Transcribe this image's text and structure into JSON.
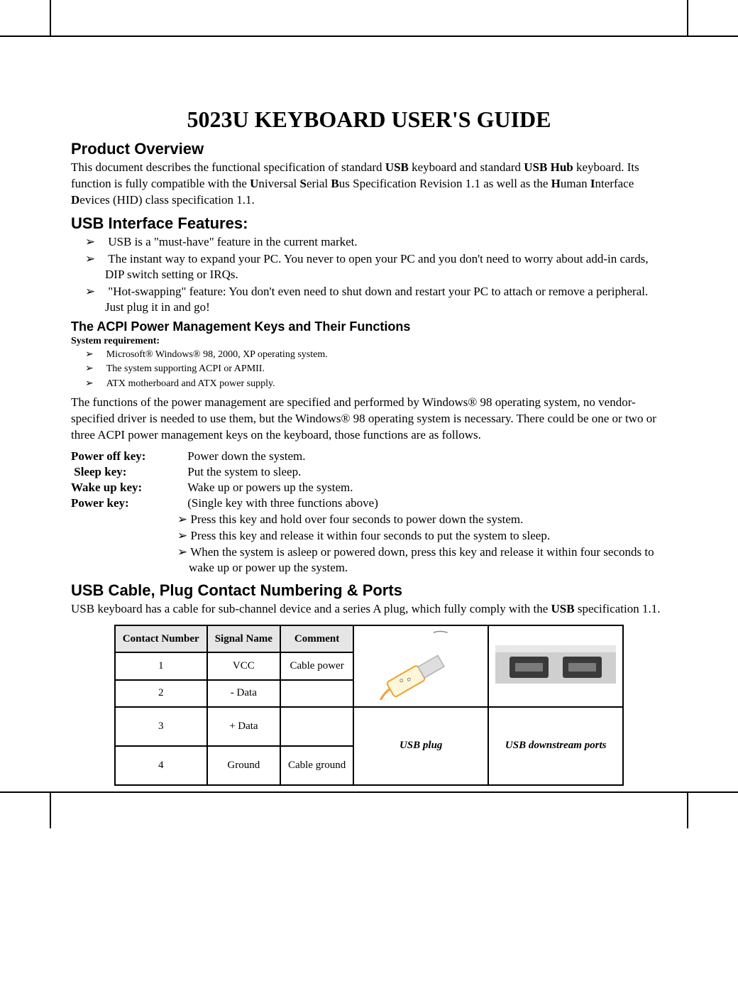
{
  "title": "5023U KEYBOARD USER'S GUIDE",
  "typography": {
    "title_font": "Comic Sans MS",
    "title_fontsize": 32,
    "section_font": "Arial",
    "section_fontsize": 22,
    "subsection_fontsize": 18,
    "body_font": "Times New Roman",
    "body_fontsize": 17,
    "small_fontsize": 14
  },
  "colors": {
    "text": "#000000",
    "background": "#ffffff",
    "table_header_bg": "#e6e6e6",
    "table_border": "#000000",
    "usb_plug_body": "#fdf6d8",
    "usb_plug_metal": "#dedede",
    "usb_plug_outline": "#f0a030",
    "usb_ports_bg": "#cfcfcf",
    "usb_port_dark": "#3a3a3a",
    "usb_port_slot": "#7a7a7a"
  },
  "overview": {
    "heading": "Product Overview",
    "text_html": "This document describes the functional specification of standard <b>USB</b> keyboard and standard <b>USB Hub</b> keyboard. Its function is fully compatible with the <b>U</b>niversal <b>S</b>erial <b>B</b>us Specification Revision 1.1 as well as the <b>H</b>uman <b>I</b>nterface <b>D</b>evices (HID) class specification 1.1."
  },
  "interface": {
    "heading": "USB Interface Features:",
    "bullets": [
      "USB is a \"must-have\" feature in the current market.",
      "The instant way to expand your PC. You never to open your PC and you don't need to worry about add-in cards, DIP switch setting or IRQs.",
      "\"Hot-swapping\" feature: You don't even need to shut down and restart your PC to attach or remove a peripheral. Just plug it in and go!"
    ]
  },
  "acpi": {
    "heading": "The ACPI Power Management Keys and Their Functions",
    "sysreq_label": "System requirement:",
    "sysreq_bullets": [
      "Microsoft® Windows® 98, 2000, XP operating system.",
      "The system supporting ACPI or APMII.",
      "ATX motherboard and ATX power supply."
    ],
    "para": "The functions of the power management are specified and performed by Windows® 98 operating system, no vendor-specified driver is needed to use them, but the Windows® 98 operating system is necessary. There could be one or two or three ACPI power management keys on the keyboard, those functions are as follows.",
    "keys": [
      {
        "label": "Power off",
        "suffix": " key:",
        "desc": "Power down the system."
      },
      {
        "label": "Sleep",
        "suffix": " key:",
        "desc": "Put the system to sleep."
      },
      {
        "label": "Wake up",
        "suffix": " key:",
        "desc": "Wake up or powers up the system."
      },
      {
        "label": "Power",
        "suffix": " key:",
        "desc": "(Single key with three functions above)"
      }
    ],
    "power_sub": [
      "Press this key and hold over four seconds to power down the system.",
      "Press this key and release it within four seconds to put the system to sleep.",
      "When the system is asleep or powered down, press this key and release it within four seconds to wake up or power up the system."
    ]
  },
  "cable": {
    "heading": "USB Cable, Plug Contact Numbering & Ports",
    "text_html": "USB keyboard has a cable for sub-channel device and a series A plug, which fully comply with the <b>USB</b> specification 1.1.",
    "table": {
      "columns": [
        "Contact Number",
        "Signal Name",
        "Comment"
      ],
      "rows": [
        [
          "1",
          "VCC",
          "Cable power"
        ],
        [
          "2",
          "- Data",
          ""
        ],
        [
          "3",
          "+ Data",
          ""
        ],
        [
          "4",
          "Ground",
          "Cable ground"
        ]
      ],
      "image_labels": {
        "plug": "USB plug",
        "ports": "USB downstream ports"
      }
    }
  }
}
